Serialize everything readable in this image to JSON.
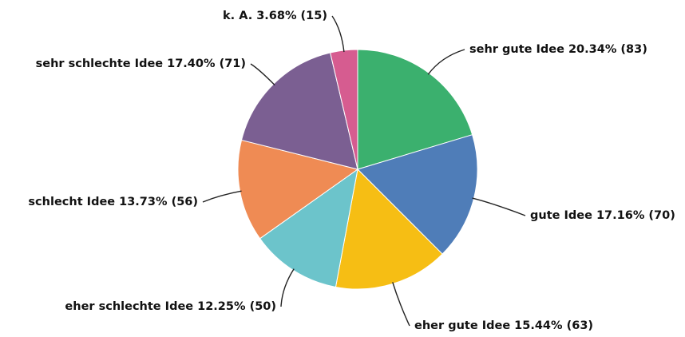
{
  "chart_data": {
    "type": "pie",
    "categories": [
      "sehr gute Idee",
      "gute Idee",
      "eher gute Idee",
      "eher schlechte Idee",
      "schlecht Idee",
      "sehr schlechte Idee",
      "k. A."
    ],
    "values": [
      20.34,
      17.16,
      15.44,
      12.25,
      13.73,
      17.4,
      3.68
    ],
    "value_labels": [
      "20.34% (83)",
      "17.16% (70)",
      "15.44% (63)",
      "12.25% (50)",
      "13.73% (56)",
      "17.40% (71)",
      "3.68% (15)"
    ],
    "colors": [
      "#3bb06e",
      "#4f7db8",
      "#f6be14",
      "#6cc4cb",
      "#ef8b54",
      "#7b5f92",
      "#d65c90"
    ]
  }
}
